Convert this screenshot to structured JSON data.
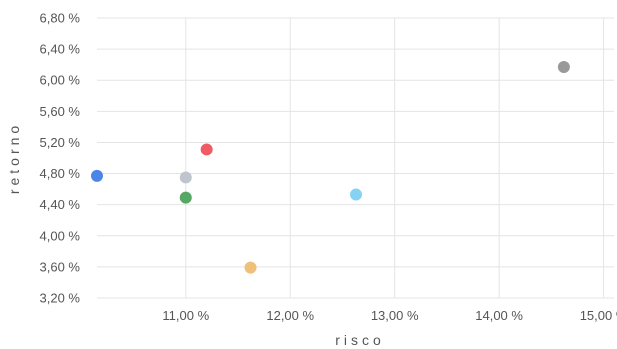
{
  "chart_data": {
    "type": "scatter",
    "xlabel": "risco",
    "ylabel": "retorno",
    "xlim": [
      10.15,
      15.1
    ],
    "ylim": [
      3.2,
      6.8
    ],
    "x_ticks": [
      11.0,
      12.0,
      13.0,
      14.0,
      15.0
    ],
    "x_tick_labels": [
      "11,00 %",
      "12,00 %",
      "13,00 %",
      "14,00 %",
      "15,00 %"
    ],
    "y_ticks": [
      3.2,
      3.6,
      4.0,
      4.4,
      4.8,
      5.2,
      5.6,
      6.0,
      6.4,
      6.8
    ],
    "y_tick_labels": [
      "3,20 %",
      "3,60 %",
      "4,00 %",
      "4,40 %",
      "4,80 %",
      "5,20 %",
      "5,60 %",
      "6,00 %",
      "6,40 %",
      "6,80 %"
    ],
    "grid": true,
    "points": [
      {
        "x": 10.15,
        "y": 4.77,
        "color": "#4a86e8"
      },
      {
        "x": 11.0,
        "y": 4.75,
        "color": "#c0c4cc"
      },
      {
        "x": 11.0,
        "y": 4.49,
        "color": "#57a863"
      },
      {
        "x": 11.2,
        "y": 5.11,
        "color": "#ee5d65"
      },
      {
        "x": 11.62,
        "y": 3.59,
        "color": "#eec07a"
      },
      {
        "x": 12.63,
        "y": 4.53,
        "color": "#86d2f2"
      },
      {
        "x": 14.62,
        "y": 6.17,
        "color": "#999999"
      }
    ]
  }
}
